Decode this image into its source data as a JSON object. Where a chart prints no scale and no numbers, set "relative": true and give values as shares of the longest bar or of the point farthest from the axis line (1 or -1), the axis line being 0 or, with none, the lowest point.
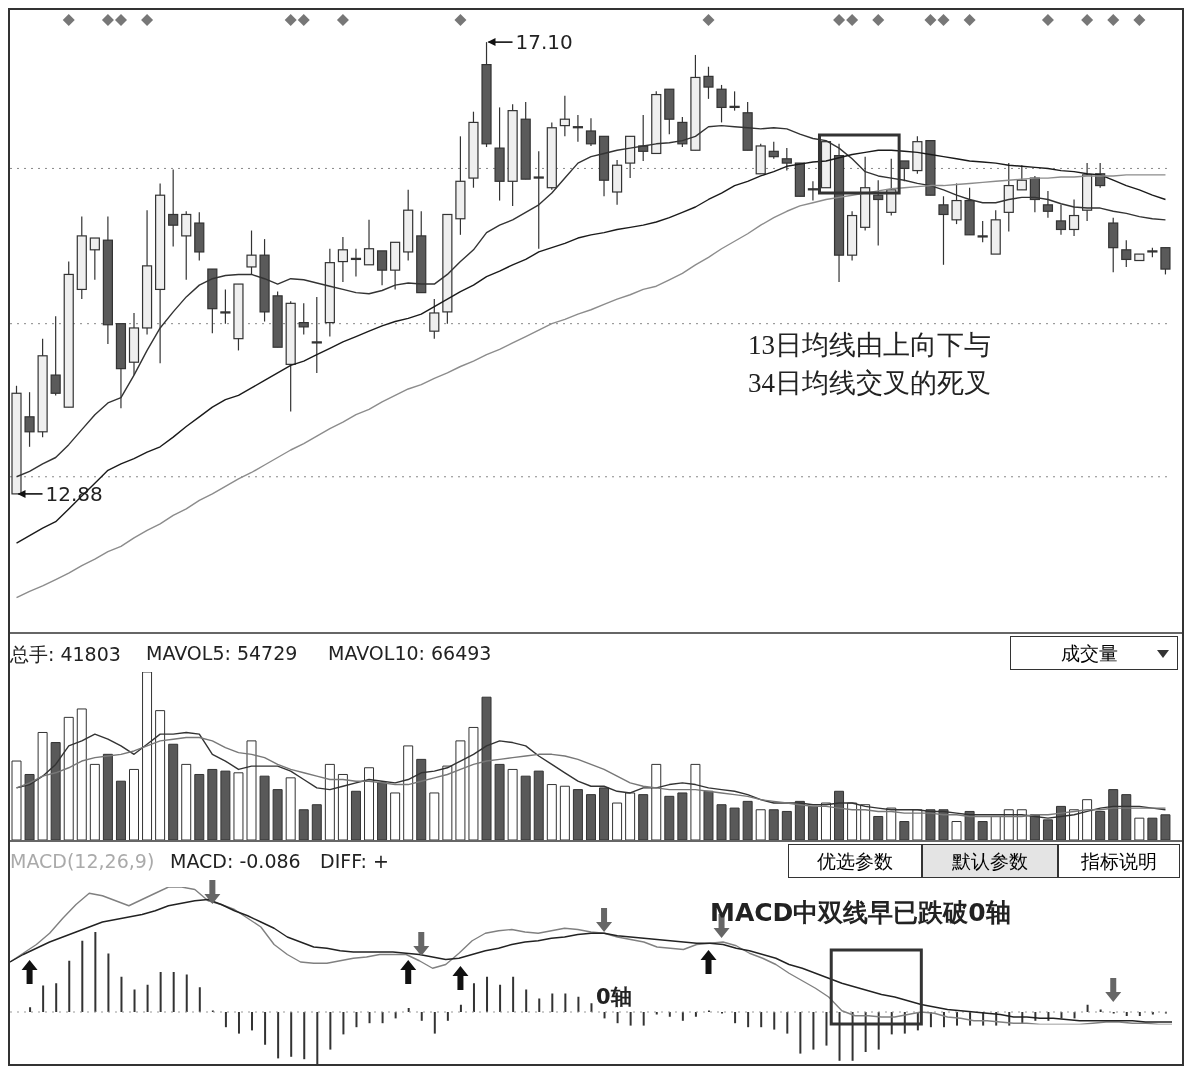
{
  "chart_data": [
    {
      "type": "candlestick",
      "categories": [
        null,
        null,
        null,
        null,
        null,
        null,
        null,
        null,
        null,
        null,
        null,
        null,
        null,
        null,
        null,
        null,
        null,
        null,
        null,
        null,
        null,
        null,
        null,
        null,
        null,
        null,
        null,
        null,
        null,
        null,
        null,
        null,
        null,
        null,
        null,
        null,
        null,
        null,
        null,
        null,
        null,
        null,
        null,
        null,
        null,
        null,
        null,
        null,
        null,
        null,
        null,
        null,
        null,
        null,
        null,
        null,
        null,
        null,
        null,
        null,
        null,
        null,
        null,
        null,
        null,
        null,
        null,
        null,
        null,
        null,
        null,
        null,
        null,
        null,
        null,
        null,
        null,
        null,
        null,
        null,
        null,
        null,
        null,
        null,
        null,
        null,
        null,
        null,
        null
      ],
      "ohlc": [
        [
          12.88,
          13.89,
          12.88,
          13.82
        ],
        [
          13.6,
          13.83,
          13.32,
          13.46
        ],
        [
          13.46,
          14.33,
          13.41,
          14.17
        ],
        [
          13.99,
          14.54,
          13.8,
          13.82
        ],
        [
          13.69,
          15.05,
          13.69,
          14.93
        ],
        [
          14.79,
          15.47,
          14.7,
          15.29
        ],
        [
          15.16,
          15.27,
          14.88,
          15.27
        ],
        [
          15.25,
          15.47,
          14.28,
          14.46
        ],
        [
          14.47,
          14.47,
          13.68,
          14.05
        ],
        [
          14.11,
          14.57,
          13.99,
          14.43
        ],
        [
          14.43,
          15.53,
          14.37,
          15.01
        ],
        [
          14.79,
          15.78,
          14.1,
          15.67
        ],
        [
          15.49,
          15.91,
          15.19,
          15.39
        ],
        [
          15.29,
          15.52,
          14.88,
          15.49
        ],
        [
          15.41,
          15.51,
          15.06,
          15.14
        ],
        [
          14.98,
          14.98,
          14.38,
          14.61
        ],
        [
          14.58,
          14.79,
          14.47,
          14.57
        ],
        [
          14.33,
          14.84,
          14.22,
          14.84
        ],
        [
          15.0,
          15.34,
          14.93,
          15.11
        ],
        [
          15.11,
          15.26,
          14.49,
          14.58
        ],
        [
          14.73,
          14.77,
          14.25,
          14.25
        ],
        [
          14.09,
          14.68,
          13.65,
          14.66
        ],
        [
          14.48,
          14.66,
          14.37,
          14.44
        ],
        [
          14.3,
          14.72,
          14.01,
          14.29
        ],
        [
          14.48,
          15.17,
          14.35,
          15.04
        ],
        [
          15.05,
          15.28,
          14.86,
          15.16
        ],
        [
          15.08,
          15.17,
          14.91,
          15.07
        ],
        [
          15.02,
          15.44,
          15.02,
          15.17
        ],
        [
          15.15,
          15.15,
          14.83,
          14.97
        ],
        [
          14.97,
          15.23,
          14.79,
          15.23
        ],
        [
          15.14,
          15.72,
          15.06,
          15.53
        ],
        [
          15.29,
          15.52,
          14.76,
          14.76
        ],
        [
          14.4,
          14.7,
          14.33,
          14.57
        ],
        [
          14.58,
          15.49,
          14.47,
          15.49
        ],
        [
          15.45,
          16.22,
          15.3,
          15.8
        ],
        [
          15.83,
          16.45,
          15.74,
          16.35
        ],
        [
          16.89,
          17.1,
          16.12,
          16.15
        ],
        [
          16.11,
          16.49,
          15.62,
          15.8
        ],
        [
          15.8,
          16.52,
          15.57,
          16.46
        ],
        [
          16.38,
          16.54,
          15.82,
          15.82
        ],
        [
          15.84,
          16.08,
          15.17,
          15.83
        ],
        [
          15.74,
          16.35,
          15.72,
          16.3
        ],
        [
          16.32,
          16.6,
          16.22,
          16.38
        ],
        [
          16.31,
          16.42,
          16.17,
          16.3
        ],
        [
          16.27,
          16.39,
          16.13,
          16.15
        ],
        [
          16.22,
          16.22,
          15.66,
          15.81
        ],
        [
          15.7,
          16.0,
          15.58,
          15.95
        ],
        [
          15.97,
          16.22,
          15.83,
          16.22
        ],
        [
          16.13,
          16.42,
          15.99,
          16.08
        ],
        [
          16.06,
          16.64,
          16.06,
          16.61
        ],
        [
          16.66,
          16.66,
          16.24,
          16.38
        ],
        [
          16.35,
          16.4,
          16.12,
          16.15
        ],
        [
          16.09,
          16.98,
          16.09,
          16.77
        ],
        [
          16.78,
          16.87,
          16.57,
          16.68
        ],
        [
          16.66,
          16.7,
          16.35,
          16.49
        ],
        [
          16.5,
          16.64,
          16.46,
          16.49
        ],
        [
          16.44,
          16.54,
          16.09,
          16.09
        ],
        [
          15.87,
          16.15,
          15.87,
          16.13
        ],
        [
          16.08,
          16.17,
          16.01,
          16.03
        ],
        [
          16.01,
          16.11,
          15.9,
          15.97
        ],
        [
          15.97,
          15.97,
          15.66,
          15.66
        ],
        [
          15.73,
          15.8,
          15.62,
          15.72
        ],
        [
          15.74,
          16.17,
          15.74,
          16.17
        ],
        [
          16.04,
          16.15,
          14.86,
          15.11
        ],
        [
          15.11,
          15.52,
          15.06,
          15.48
        ],
        [
          15.37,
          16.03,
          15.34,
          15.74
        ],
        [
          15.67,
          15.81,
          15.2,
          15.63
        ],
        [
          15.51,
          16.01,
          15.48,
          15.72
        ],
        [
          15.99,
          15.99,
          15.8,
          15.92
        ],
        [
          15.9,
          16.22,
          15.87,
          16.17
        ],
        [
          16.18,
          16.18,
          15.67,
          15.67
        ],
        [
          15.58,
          15.66,
          15.02,
          15.49
        ],
        [
          15.44,
          15.78,
          15.4,
          15.62
        ],
        [
          15.62,
          15.74,
          15.3,
          15.3
        ],
        [
          15.29,
          15.43,
          15.23,
          15.28
        ],
        [
          15.12,
          15.53,
          15.12,
          15.44
        ],
        [
          15.51,
          15.97,
          15.33,
          15.76
        ],
        [
          15.72,
          15.95,
          15.72,
          15.81
        ],
        [
          15.83,
          15.85,
          15.51,
          15.63
        ],
        [
          15.58,
          15.71,
          15.46,
          15.52
        ],
        [
          15.43,
          15.58,
          15.3,
          15.35
        ],
        [
          15.35,
          15.63,
          15.29,
          15.48
        ],
        [
          15.53,
          15.97,
          15.43,
          15.86
        ],
        [
          15.87,
          15.97,
          15.74,
          15.76
        ],
        [
          15.41,
          15.46,
          14.95,
          15.18
        ],
        [
          15.16,
          15.25,
          15.0,
          15.07
        ],
        [
          15.06,
          15.12,
          15.06,
          15.12
        ],
        [
          15.15,
          15.18,
          15.09,
          15.14
        ],
        [
          15.18,
          15.18,
          14.93,
          14.98
        ]
      ],
      "series": [
        {
          "type": "line",
          "color": "#333333",
          "values": [
            13.04,
            13.09,
            13.16,
            13.22,
            13.34,
            13.48,
            13.62,
            13.73,
            13.78,
            13.99,
            14.22,
            14.43,
            14.58,
            14.72,
            14.83,
            14.89,
            14.92,
            14.93,
            14.93,
            14.89,
            14.84,
            14.89,
            14.88,
            14.85,
            14.82,
            14.79,
            14.76,
            14.75,
            14.78,
            14.83,
            14.85,
            14.84,
            14.84,
            14.93,
            15.05,
            15.16,
            15.32,
            15.39,
            15.44,
            15.51,
            15.58,
            15.69,
            15.83,
            15.97,
            16.03,
            16.06,
            16.09,
            16.11,
            16.13,
            16.15,
            16.16,
            16.18,
            16.22,
            16.31,
            16.32,
            16.31,
            16.3,
            16.29,
            16.3,
            16.29,
            16.24,
            16.2,
            16.18,
            16.11,
            16.01,
            15.89,
            15.85,
            15.83,
            15.81,
            15.78,
            15.76,
            15.72,
            15.67,
            15.63,
            15.6,
            15.6,
            15.63,
            15.65,
            15.65,
            15.63,
            15.59,
            15.56,
            15.55,
            15.55,
            15.52,
            15.5,
            15.47,
            15.45,
            15.44
          ]
        },
        {
          "type": "line",
          "color": "#1a1a1a",
          "values": [
            12.42,
            12.49,
            12.56,
            12.62,
            12.74,
            12.86,
            12.98,
            13.1,
            13.16,
            13.21,
            13.27,
            13.32,
            13.41,
            13.51,
            13.6,
            13.69,
            13.76,
            13.8,
            13.87,
            13.94,
            14.01,
            14.08,
            14.12,
            14.18,
            14.24,
            14.3,
            14.35,
            14.4,
            14.45,
            14.49,
            14.52,
            14.56,
            14.63,
            14.7,
            14.77,
            14.83,
            14.91,
            14.96,
            15.02,
            15.07,
            15.14,
            15.18,
            15.22,
            15.27,
            15.3,
            15.32,
            15.35,
            15.37,
            15.39,
            15.42,
            15.46,
            15.51,
            15.56,
            15.63,
            15.69,
            15.76,
            15.8,
            15.85,
            15.89,
            15.94,
            15.96,
            15.98,
            15.99,
            16.02,
            16.05,
            16.07,
            16.09,
            16.09,
            16.08,
            16.07,
            16.05,
            16.03,
            16.01,
            15.99,
            15.98,
            15.97,
            15.95,
            15.94,
            15.93,
            15.92,
            15.9,
            15.89,
            15.87,
            15.86,
            15.81,
            15.76,
            15.72,
            15.67,
            15.63
          ]
        },
        {
          "type": "line",
          "color": "#8c8c8c",
          "values": [
            11.91,
            11.97,
            12.02,
            12.08,
            12.14,
            12.21,
            12.27,
            12.34,
            12.39,
            12.47,
            12.54,
            12.6,
            12.68,
            12.74,
            12.82,
            12.88,
            12.95,
            13.02,
            13.08,
            13.15,
            13.22,
            13.29,
            13.35,
            13.42,
            13.49,
            13.55,
            13.62,
            13.67,
            13.74,
            13.8,
            13.86,
            13.9,
            13.96,
            14.01,
            14.07,
            14.12,
            14.18,
            14.23,
            14.29,
            14.35,
            14.41,
            14.47,
            14.51,
            14.56,
            14.6,
            14.65,
            14.7,
            14.74,
            14.79,
            14.82,
            14.88,
            14.94,
            15.02,
            15.09,
            15.17,
            15.24,
            15.31,
            15.39,
            15.46,
            15.52,
            15.57,
            15.6,
            15.63,
            15.65,
            15.67,
            15.69,
            15.71,
            15.73,
            15.74,
            15.75,
            15.76,
            15.76,
            15.77,
            15.78,
            15.79,
            15.8,
            15.81,
            15.82,
            15.83,
            15.83,
            15.84,
            15.84,
            15.85,
            15.85,
            15.85,
            15.86,
            15.86,
            15.86,
            15.86
          ]
        }
      ],
      "ylim": [
        11.59,
        17.4
      ],
      "yticks": [
        {
          "value": 13.04,
          "label": null
        },
        {
          "value": 14.47,
          "label": null
        },
        {
          "value": 15.92,
          "label": null
        }
      ],
      "grid": "y",
      "tick_labels": false,
      "annotations": [
        "17.10",
        "12.88",
        "13日均线由上向下与\n34日均线交叉的死叉"
      ]
    },
    {
      "type": "bar",
      "relative": true,
      "categories": [
        null,
        null,
        null,
        null,
        null,
        null,
        null,
        null,
        null,
        null,
        null,
        null,
        null,
        null,
        null,
        null,
        null,
        null,
        null,
        null,
        null,
        null,
        null,
        null,
        null,
        null,
        null,
        null,
        null,
        null,
        null,
        null,
        null,
        null,
        null,
        null,
        null,
        null,
        null,
        null,
        null,
        null,
        null,
        null,
        null,
        null,
        null,
        null,
        null,
        null,
        null,
        null,
        null,
        null,
        null,
        null,
        null,
        null,
        null,
        null,
        null,
        null,
        null,
        null,
        null,
        null,
        null,
        null,
        null,
        null,
        null,
        null,
        null,
        null,
        null,
        null,
        null,
        null,
        null,
        null,
        null,
        null,
        null,
        null,
        null,
        null,
        null,
        null,
        null
      ],
      "series": [
        {
          "type": "bar",
          "colors": [
            "#ffffff",
            "#595959",
            "#ffffff",
            "#595959",
            "#ffffff",
            "#ffffff",
            "#ffffff",
            "#595959",
            "#595959",
            "#ffffff",
            "#ffffff",
            "#ffffff",
            "#595959",
            "#ffffff",
            "#595959",
            "#595959",
            "#595959",
            "#ffffff",
            "#ffffff",
            "#595959",
            "#595959",
            "#ffffff",
            "#595959",
            "#595959",
            "#ffffff",
            "#ffffff",
            "#595959",
            "#ffffff",
            "#595959",
            "#ffffff",
            "#ffffff",
            "#595959",
            "#ffffff",
            "#ffffff",
            "#ffffff",
            "#ffffff",
            "#595959",
            "#595959",
            "#ffffff",
            "#595959",
            "#595959",
            "#ffffff",
            "#ffffff",
            "#595959",
            "#595959",
            "#595959",
            "#ffffff",
            "#ffffff",
            "#595959",
            "#ffffff",
            "#595959",
            "#595959",
            "#ffffff",
            "#595959",
            "#595959",
            "#595959",
            "#595959",
            "#ffffff",
            "#595959",
            "#595959",
            "#595959",
            "#595959",
            "#ffffff",
            "#595959",
            "#ffffff",
            "#ffffff",
            "#595959",
            "#ffffff",
            "#595959",
            "#ffffff",
            "#595959",
            "#595959",
            "#ffffff",
            "#595959",
            "#595959",
            "#ffffff",
            "#ffffff",
            "#ffffff",
            "#595959",
            "#595959",
            "#595959",
            "#ffffff",
            "#ffffff",
            "#595959",
            "#595959",
            "#595959",
            "#ffffff",
            "#595959",
            "#595959"
          ],
          "values": [
            0.47,
            0.39,
            0.64,
            0.58,
            0.73,
            0.78,
            0.45,
            0.51,
            0.35,
            0.42,
            1,
            0.77,
            0.57,
            0.45,
            0.39,
            0.42,
            0.41,
            0.4,
            0.59,
            0.38,
            0.3,
            0.37,
            0.18,
            0.21,
            0.45,
            0.39,
            0.29,
            0.43,
            0.34,
            0.28,
            0.56,
            0.48,
            0.28,
            0.44,
            0.59,
            0.67,
            0.85,
            0.45,
            0.42,
            0.38,
            0.41,
            0.33,
            0.32,
            0.3,
            0.27,
            0.31,
            0.22,
            0.28,
            0.27,
            0.45,
            0.26,
            0.28,
            0.45,
            0.29,
            0.21,
            0.19,
            0.23,
            0.18,
            0.18,
            0.17,
            0.23,
            0.2,
            0.22,
            0.29,
            0.22,
            0.21,
            0.14,
            0.19,
            0.11,
            0.18,
            0.18,
            0.18,
            0.11,
            0.17,
            0.11,
            0.14,
            0.18,
            0.18,
            0.15,
            0.12,
            0.2,
            0.18,
            0.24,
            0.17,
            0.3,
            0.27,
            0.13,
            0.13,
            0.15
          ]
        },
        {
          "type": "line",
          "color": "#333333",
          "values": [
            0.31,
            0.33,
            0.38,
            0.45,
            0.56,
            0.59,
            0.63,
            0.6,
            0.56,
            0.51,
            0.57,
            0.63,
            0.63,
            0.64,
            0.63,
            0.51,
            0.47,
            0.42,
            0.44,
            0.44,
            0.44,
            0.41,
            0.36,
            0.31,
            0.3,
            0.32,
            0.34,
            0.36,
            0.35,
            0.34,
            0.36,
            0.4,
            0.41,
            0.43,
            0.47,
            0.51,
            0.56,
            0.59,
            0.58,
            0.56,
            0.5,
            0.45,
            0.4,
            0.35,
            0.32,
            0.32,
            0.29,
            0.28,
            0.31,
            0.31,
            0.33,
            0.34,
            0.33,
            0.31,
            0.3,
            0.29,
            0.27,
            0.24,
            0.22,
            0.22,
            0.22,
            0.21,
            0.21,
            0.22,
            0.22,
            0.2,
            0.19,
            0.18,
            0.18,
            0.18,
            0.17,
            0.17,
            0.16,
            0.15,
            0.15,
            0.15,
            0.15,
            0.15,
            0.14,
            0.13,
            0.14,
            0.15,
            0.17,
            0.19,
            0.2,
            0.2,
            0.2,
            0.19,
            0.18
          ]
        },
        {
          "type": "line",
          "color": "#777777",
          "values": [
            0.31,
            0.34,
            0.38,
            0.4,
            0.43,
            0.47,
            0.49,
            0.5,
            0.51,
            0.53,
            0.56,
            0.59,
            0.6,
            0.61,
            0.61,
            0.59,
            0.55,
            0.52,
            0.51,
            0.49,
            0.45,
            0.42,
            0.4,
            0.38,
            0.36,
            0.36,
            0.35,
            0.35,
            0.34,
            0.33,
            0.33,
            0.35,
            0.37,
            0.39,
            0.42,
            0.45,
            0.47,
            0.48,
            0.49,
            0.5,
            0.51,
            0.51,
            0.5,
            0.48,
            0.45,
            0.42,
            0.38,
            0.34,
            0.32,
            0.31,
            0.3,
            0.3,
            0.3,
            0.29,
            0.28,
            0.27,
            0.26,
            0.24,
            0.23,
            0.22,
            0.21,
            0.2,
            0.2,
            0.19,
            0.18,
            0.18,
            0.17,
            0.17,
            0.16,
            0.16,
            0.16,
            0.15,
            0.15,
            0.14,
            0.14,
            0.14,
            0.14,
            0.14,
            0.15,
            0.15,
            0.16,
            0.17,
            0.18,
            0.18,
            0.19,
            0.19,
            0.19,
            0.19,
            0.19
          ]
        }
      ],
      "annotations": [
        "总手: 41803",
        "MAVOL5: 54729",
        "MAVOL10: 66493",
        "成交量"
      ]
    },
    {
      "type": "bar",
      "relative": true,
      "categories": [
        null,
        null,
        null,
        null,
        null,
        null,
        null,
        null,
        null,
        null,
        null,
        null,
        null,
        null,
        null,
        null,
        null,
        null,
        null,
        null,
        null,
        null,
        null,
        null,
        null,
        null,
        null,
        null,
        null,
        null,
        null,
        null,
        null,
        null,
        null,
        null,
        null,
        null,
        null,
        null,
        null,
        null,
        null,
        null,
        null,
        null,
        null,
        null,
        null,
        null,
        null,
        null,
        null,
        null,
        null,
        null,
        null,
        null,
        null,
        null,
        null,
        null,
        null,
        null,
        null,
        null,
        null,
        null,
        null,
        null,
        null,
        null,
        null,
        null,
        null,
        null,
        null,
        null,
        null,
        null,
        null,
        null,
        null,
        null,
        null,
        null,
        null,
        null,
        null
      ],
      "series": [
        {
          "type": "bar",
          "color": "#333333",
          "values": [
            0,
            0.06,
            0.33,
            0.36,
            0.64,
            0.89,
            1,
            0.73,
            0.44,
            0.28,
            0.34,
            0.5,
            0.5,
            0.47,
            0.31,
            0.02,
            -0.19,
            -0.27,
            -0.23,
            -0.41,
            -0.58,
            -0.56,
            -0.59,
            -0.67,
            -0.47,
            -0.28,
            -0.19,
            -0.14,
            -0.14,
            -0.08,
            0.05,
            -0.11,
            -0.27,
            -0.11,
            0.09,
            0.36,
            0.44,
            0.34,
            0.44,
            0.28,
            0.17,
            0.23,
            0.23,
            0.19,
            0.11,
            -0.08,
            -0.14,
            -0.17,
            -0.17,
            -0.03,
            -0.06,
            -0.11,
            -0.06,
            0.02,
            -0.02,
            -0.14,
            -0.19,
            -0.19,
            -0.22,
            -0.27,
            -0.52,
            -0.47,
            -0.42,
            -0.61,
            -0.61,
            -0.5,
            -0.47,
            -0.28,
            -0.27,
            -0.23,
            -0.19,
            -0.19,
            -0.17,
            -0.17,
            -0.17,
            -0.17,
            -0.17,
            -0.14,
            -0.11,
            -0.11,
            -0.08,
            -0.08,
            0.09,
            0.03,
            -0.02,
            -0.05,
            -0.05,
            -0.03,
            -0.02
          ]
        }
      ],
      "annotations": [
        "MACD(12,26,9)",
        "MACD: -0.086",
        "DIFF: +",
        "优选参数",
        "默认参数",
        "指标说明"
      ]
    },
    {
      "type": "line",
      "relative": true,
      "categories": [
        null,
        null,
        null,
        null,
        null,
        null,
        null,
        null,
        null,
        null,
        null,
        null,
        null,
        null,
        null,
        null,
        null,
        null,
        null,
        null,
        null,
        null,
        null,
        null,
        null,
        null,
        null,
        null,
        null,
        null,
        null,
        null,
        null,
        null,
        null,
        null,
        null,
        null,
        null,
        null,
        null,
        null,
        null,
        null,
        null,
        null,
        null,
        null,
        null,
        null,
        null,
        null,
        null,
        null,
        null,
        null,
        null,
        null,
        null,
        null,
        null,
        null,
        null,
        null,
        null,
        null,
        null,
        null,
        null,
        null,
        null,
        null,
        null,
        null,
        null,
        null,
        null,
        null,
        null,
        null,
        null,
        null,
        null,
        null,
        null,
        null,
        null,
        null,
        null
      ],
      "series": [
        {
          "type": "line",
          "color": "#808080",
          "values": [
            0.4,
            0.47,
            0.54,
            0.63,
            0.75,
            0.86,
            0.95,
            0.93,
            0.89,
            0.85,
            0.9,
            0.95,
            1,
            1,
            0.98,
            0.89,
            0.86,
            0.82,
            0.75,
            0.68,
            0.54,
            0.46,
            0.4,
            0.39,
            0.39,
            0.41,
            0.43,
            0.44,
            0.46,
            0.46,
            0.46,
            0.41,
            0.35,
            0.38,
            0.47,
            0.57,
            0.63,
            0.65,
            0.66,
            0.64,
            0.63,
            0.65,
            0.67,
            0.66,
            0.64,
            0.63,
            0.6,
            0.58,
            0.56,
            0.52,
            0.51,
            0.5,
            0.54,
            0.55,
            0.56,
            0.53,
            0.47,
            0.43,
            0.38,
            0.31,
            0.25,
            0.19,
            0.12,
            0.01,
            -0.03,
            -0.03,
            -0.04,
            -0.04,
            -0.02,
            0.0,
            -0.01,
            -0.04,
            -0.05,
            -0.07,
            -0.07,
            -0.08,
            -0.09,
            -0.09,
            -0.1,
            -0.1,
            -0.1,
            -0.1,
            -0.09,
            -0.08,
            -0.08,
            -0.09,
            -0.09,
            -0.1,
            -0.1
          ]
        },
        {
          "type": "line",
          "color": "#222222",
          "values": [
            0.4,
            0.46,
            0.51,
            0.56,
            0.6,
            0.64,
            0.68,
            0.72,
            0.74,
            0.76,
            0.78,
            0.81,
            0.85,
            0.87,
            0.89,
            0.9,
            0.86,
            0.81,
            0.77,
            0.72,
            0.67,
            0.6,
            0.56,
            0.52,
            0.51,
            0.49,
            0.48,
            0.48,
            0.48,
            0.48,
            0.47,
            0.46,
            0.44,
            0.42,
            0.43,
            0.46,
            0.49,
            0.51,
            0.54,
            0.56,
            0.57,
            0.59,
            0.6,
            0.62,
            0.63,
            0.63,
            0.61,
            0.6,
            0.59,
            0.58,
            0.57,
            0.56,
            0.55,
            0.55,
            0.54,
            0.51,
            0.49,
            0.46,
            0.43,
            0.38,
            0.35,
            0.31,
            0.27,
            0.23,
            0.2,
            0.17,
            0.14,
            0.12,
            0.09,
            0.06,
            0.04,
            0.02,
            0.01,
            0,
            -0.01,
            -0.02,
            -0.04,
            -0.04,
            -0.05,
            -0.05,
            -0.06,
            -0.07,
            -0.07,
            -0.07,
            -0.07,
            -0.07,
            -0.08,
            -0.08,
            -0.08
          ]
        }
      ],
      "ref_lines": [
        {
          "axis": "y",
          "value": 0,
          "label": "0轴"
        }
      ],
      "annotations": [
        "MACD中双线早已跌破0轴"
      ]
    }
  ]
}
